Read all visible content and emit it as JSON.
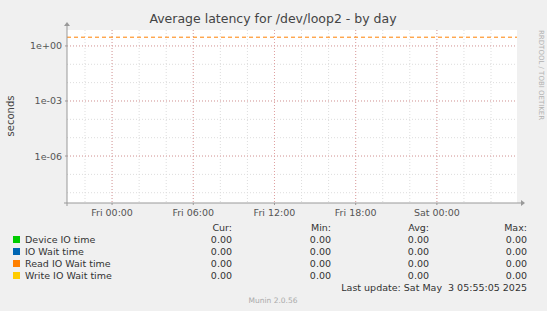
{
  "chart_data": {
    "type": "line",
    "title": "Average latency for /dev/loop2 - by day",
    "y_label": "seconds",
    "log": "y",
    "grid": true,
    "xlim": [
      -3.33,
      29.92
    ],
    "xticks": [
      {
        "value": 0,
        "label": "Fri 00:00"
      },
      {
        "value": 6,
        "label": "Fri 06:00"
      },
      {
        "value": 12,
        "label": "Fri 12:00"
      },
      {
        "value": 18,
        "label": "Fri 18:00"
      },
      {
        "value": 24,
        "label": "Sat 00:00"
      }
    ],
    "ylim": [
      2.75e-09,
      7.4
    ],
    "yticks": [
      {
        "value": 1e-06,
        "label": "1e-06"
      },
      {
        "value": 0.001,
        "label": "1e-03"
      },
      {
        "value": 1,
        "label": "1e+00"
      }
    ],
    "legend_columns": [
      "Cur:",
      "Min:",
      "Avg:",
      "Max:"
    ],
    "series": [
      {
        "name": "Device IO time",
        "color": "#00cc00",
        "values": [
          0,
          0,
          0,
          0
        ],
        "value_labels": [
          "0.00",
          "0.00",
          "0.00",
          "0.00"
        ]
      },
      {
        "name": "IO Wait time",
        "color": "#0066b3",
        "values": [
          0,
          0,
          0,
          0
        ],
        "value_labels": [
          "0.00",
          "0.00",
          "0.00",
          "0.00"
        ]
      },
      {
        "name": "Read IO Wait time",
        "color": "#ff8000",
        "values": [
          0,
          0,
          0,
          0
        ],
        "value_labels": [
          "0.00",
          "0.00",
          "0.00",
          "0.00"
        ],
        "warning": 3
      },
      {
        "name": "Write IO Wait time",
        "color": "#ffcc00",
        "values": [
          0,
          0,
          0,
          0
        ],
        "value_labels": [
          "0.00",
          "0.00",
          "0.00",
          "0.00"
        ]
      }
    ],
    "last_update": "Last update: Sat May  3 05:55:05 2025",
    "footer": "Munin 2.0.56",
    "watermark": "RRDTOOL / TOBI OETIKER"
  }
}
